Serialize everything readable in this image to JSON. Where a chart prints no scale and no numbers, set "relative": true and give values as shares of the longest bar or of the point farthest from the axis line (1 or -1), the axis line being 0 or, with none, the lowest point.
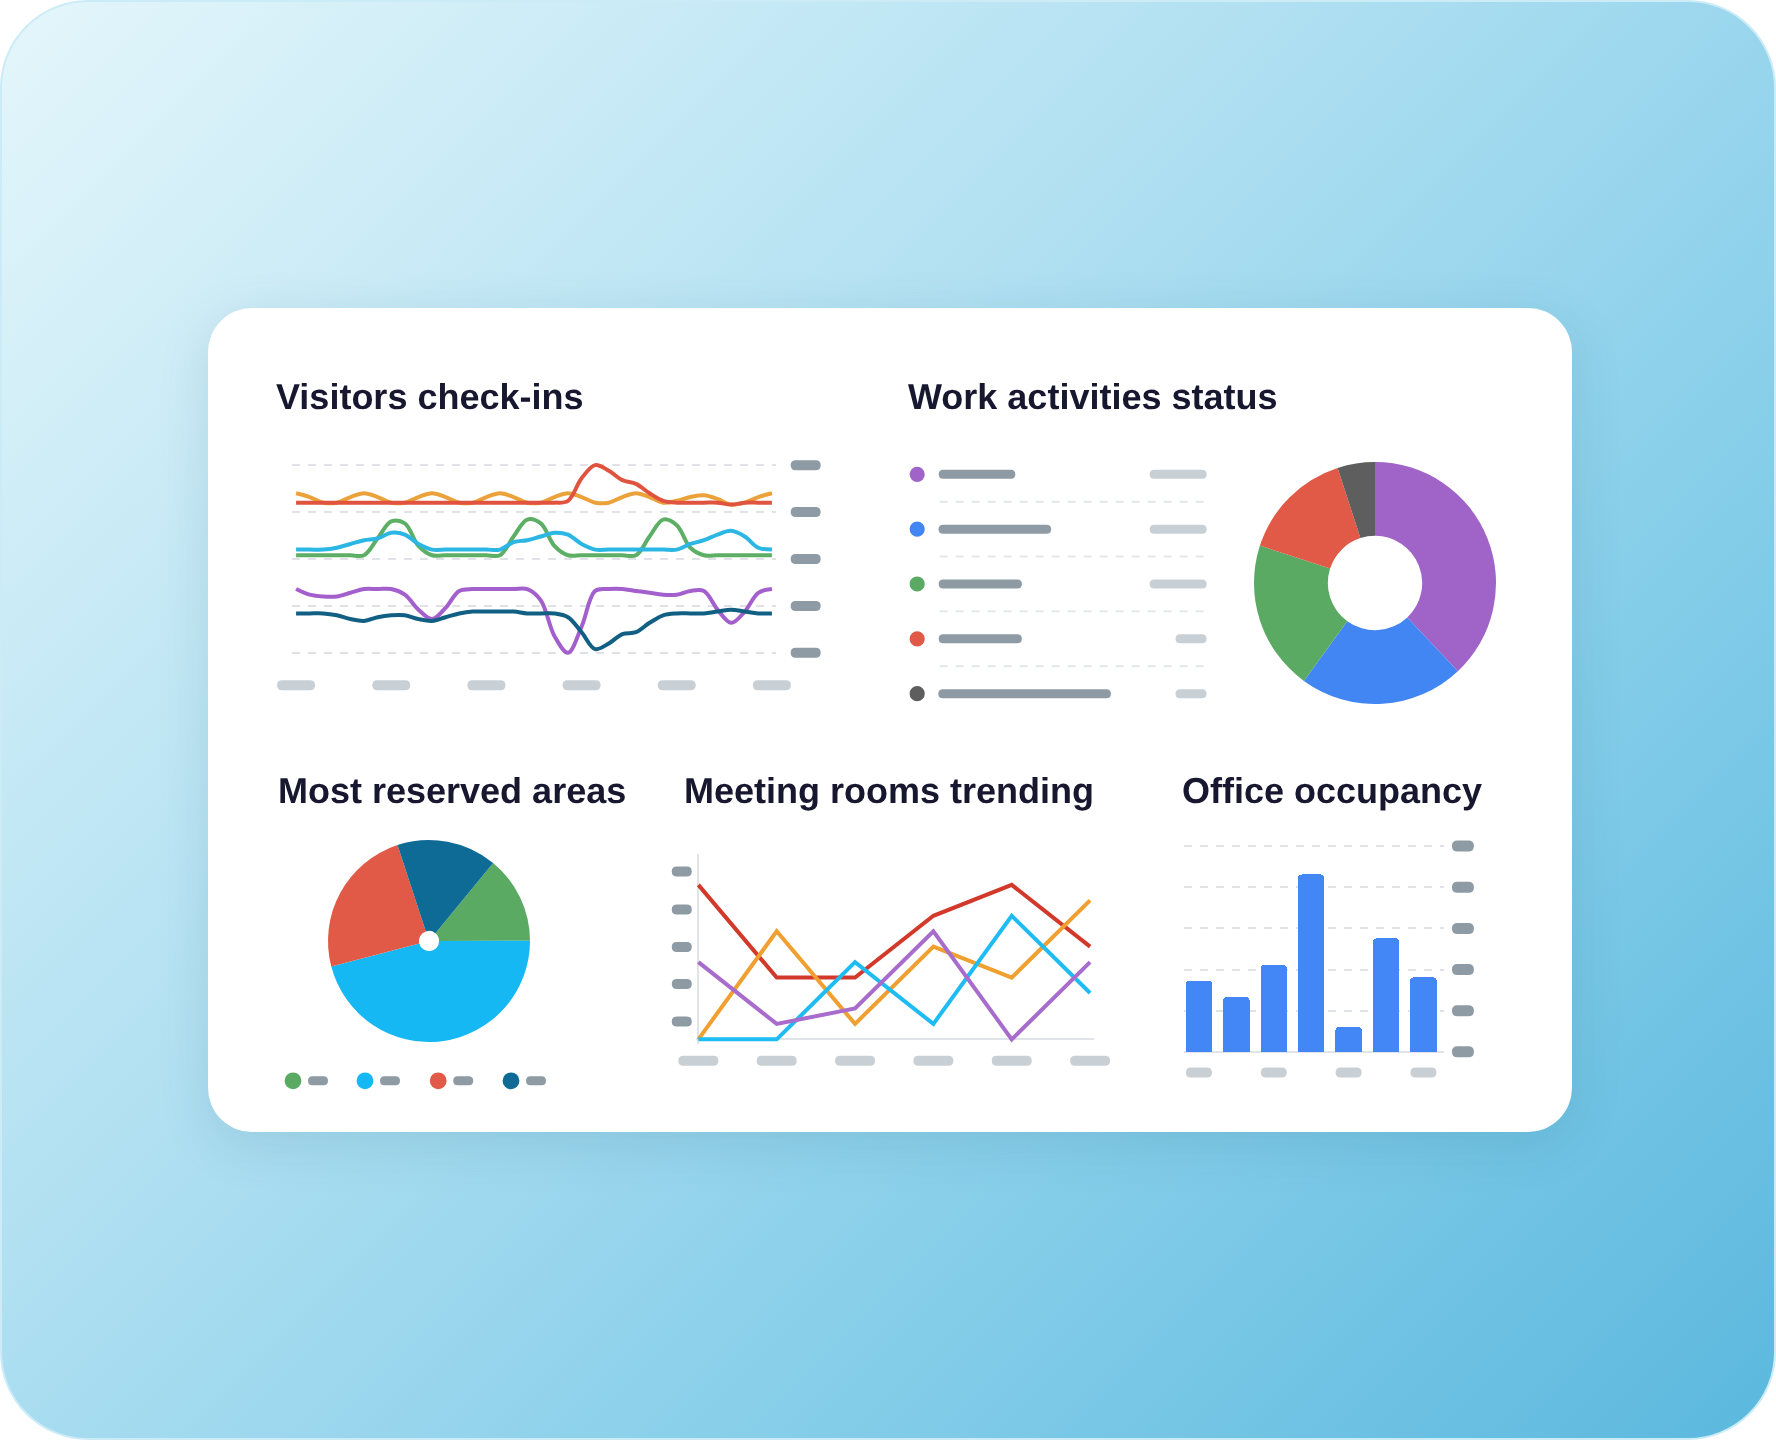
{
  "chart_data": [
    {
      "type": "line",
      "title": "Visitors check-ins",
      "relative": true,
      "grid": "y",
      "categories": [
        null,
        null,
        null,
        null,
        null,
        null,
        null,
        null,
        null,
        null,
        null,
        null,
        null,
        null,
        null,
        null,
        null,
        null,
        null,
        null,
        null,
        null,
        null,
        null,
        null,
        null,
        null,
        null,
        null,
        null,
        null,
        null,
        null,
        null,
        null,
        null
      ],
      "series": [
        {
          "color": "#eca23a",
          "values": [
            0.85,
            0.83,
            0.8,
            0.8,
            0.83,
            0.85,
            0.83,
            0.8,
            0.8,
            0.83,
            0.85,
            0.83,
            0.8,
            0.8,
            0.83,
            0.85,
            0.83,
            0.8,
            0.8,
            0.83,
            0.85,
            0.83,
            0.8,
            0.8,
            0.83,
            0.85,
            0.83,
            0.8,
            0.81,
            0.83,
            0.84,
            0.82,
            0.79,
            0.8,
            0.83,
            0.85
          ]
        },
        {
          "color": "#e0533f",
          "values": [
            0.8,
            0.8,
            0.8,
            0.8,
            0.8,
            0.8,
            0.8,
            0.8,
            0.8,
            0.8,
            0.8,
            0.8,
            0.8,
            0.8,
            0.8,
            0.8,
            0.8,
            0.8,
            0.8,
            0.8,
            0.81,
            0.93,
            1.0,
            0.97,
            0.92,
            0.9,
            0.85,
            0.81,
            0.8,
            0.8,
            0.8,
            0.8,
            0.79,
            0.8,
            0.8,
            0.8
          ]
        },
        {
          "color": "#5caf64",
          "values": [
            0.52,
            0.52,
            0.52,
            0.52,
            0.52,
            0.52,
            0.61,
            0.7,
            0.69,
            0.57,
            0.52,
            0.52,
            0.52,
            0.52,
            0.52,
            0.52,
            0.62,
            0.71,
            0.69,
            0.57,
            0.52,
            0.52,
            0.52,
            0.52,
            0.52,
            0.52,
            0.62,
            0.71,
            0.68,
            0.56,
            0.52,
            0.52,
            0.52,
            0.52,
            0.52,
            0.52
          ]
        },
        {
          "color": "#2bb6e4",
          "values": [
            0.55,
            0.55,
            0.55,
            0.56,
            0.58,
            0.6,
            0.61,
            0.64,
            0.63,
            0.58,
            0.55,
            0.55,
            0.55,
            0.55,
            0.55,
            0.55,
            0.59,
            0.6,
            0.62,
            0.64,
            0.63,
            0.58,
            0.55,
            0.55,
            0.55,
            0.55,
            0.55,
            0.55,
            0.55,
            0.58,
            0.6,
            0.63,
            0.65,
            0.62,
            0.56,
            0.55
          ]
        },
        {
          "color": "#a35fcc",
          "values": [
            0.34,
            0.31,
            0.3,
            0.3,
            0.32,
            0.34,
            0.34,
            0.34,
            0.31,
            0.23,
            0.18,
            0.24,
            0.33,
            0.34,
            0.34,
            0.34,
            0.34,
            0.34,
            0.28,
            0.09,
            0.0,
            0.14,
            0.33,
            0.34,
            0.34,
            0.33,
            0.32,
            0.31,
            0.31,
            0.33,
            0.33,
            0.23,
            0.16,
            0.22,
            0.32,
            0.34
          ]
        },
        {
          "color": "#125f84",
          "values": [
            0.21,
            0.21,
            0.21,
            0.2,
            0.18,
            0.17,
            0.19,
            0.2,
            0.2,
            0.18,
            0.17,
            0.19,
            0.21,
            0.22,
            0.22,
            0.22,
            0.22,
            0.21,
            0.21,
            0.21,
            0.19,
            0.11,
            0.02,
            0.05,
            0.1,
            0.11,
            0.16,
            0.2,
            0.21,
            0.21,
            0.21,
            0.22,
            0.23,
            0.22,
            0.21,
            0.21
          ]
        }
      ]
    },
    {
      "type": "donut",
      "title": "Work activities status",
      "categories": [
        null,
        null,
        null,
        null,
        null
      ],
      "values": [
        38,
        22,
        20,
        15,
        5
      ],
      "colors": [
        "#a063c8",
        "#4286f4",
        "#5aaa64",
        "#e05a47",
        "#5e5e5e"
      ]
    },
    {
      "type": "pie",
      "title": "Most reserved areas",
      "categories": [
        null,
        null,
        null,
        null
      ],
      "values": [
        14,
        46,
        24,
        16
      ],
      "colors": [
        "#5aaa64",
        "#16b8f3",
        "#e05a47",
        "#0d6b95"
      ]
    },
    {
      "type": "line",
      "title": "Meeting rooms trending",
      "relative": true,
      "categories": [
        null,
        null,
        null,
        null,
        null,
        null
      ],
      "series": [
        {
          "color": "#d2392a",
          "values": [
            1.0,
            0.4,
            0.4,
            0.8,
            1.0,
            0.6
          ]
        },
        {
          "color": "#f0a030",
          "values": [
            0.0,
            0.7,
            0.1,
            0.6,
            0.4,
            0.9
          ]
        },
        {
          "color": "#1ebcf2",
          "values": [
            0.0,
            0.0,
            0.5,
            0.1,
            0.8,
            0.3
          ]
        },
        {
          "color": "#a86ccc",
          "values": [
            0.5,
            0.1,
            0.2,
            0.7,
            0.0,
            0.5
          ]
        }
      ]
    },
    {
      "type": "bar",
      "title": "Office occupancy",
      "relative": true,
      "grid": "y",
      "categories": [
        null,
        null,
        null,
        null,
        null,
        null,
        null
      ],
      "values": [
        0.4,
        0.31,
        0.49,
        1.0,
        0.14,
        0.64,
        0.42
      ],
      "color": "#4287f5"
    }
  ]
}
